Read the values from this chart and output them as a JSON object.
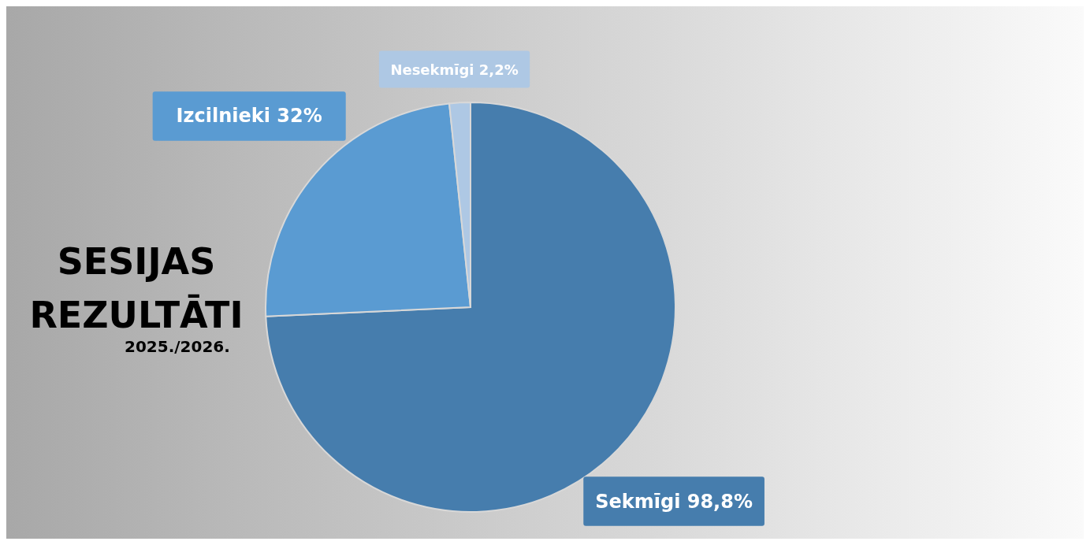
{
  "chart_data": {
    "type": "pie",
    "title": "SESIJAS REZULTĀTI",
    "subtitle": "2025./2026.",
    "categories": [
      "Sekmīgi",
      "Izcilnieki",
      "Nesekmīgi"
    ],
    "values": [
      98.8,
      32,
      2.2
    ],
    "value_labels": [
      "98,8%",
      "32%",
      "2,2%"
    ],
    "colors": [
      "#467dad",
      "#5a9bd2",
      "#aec8e4"
    ],
    "legend": false
  }
}
